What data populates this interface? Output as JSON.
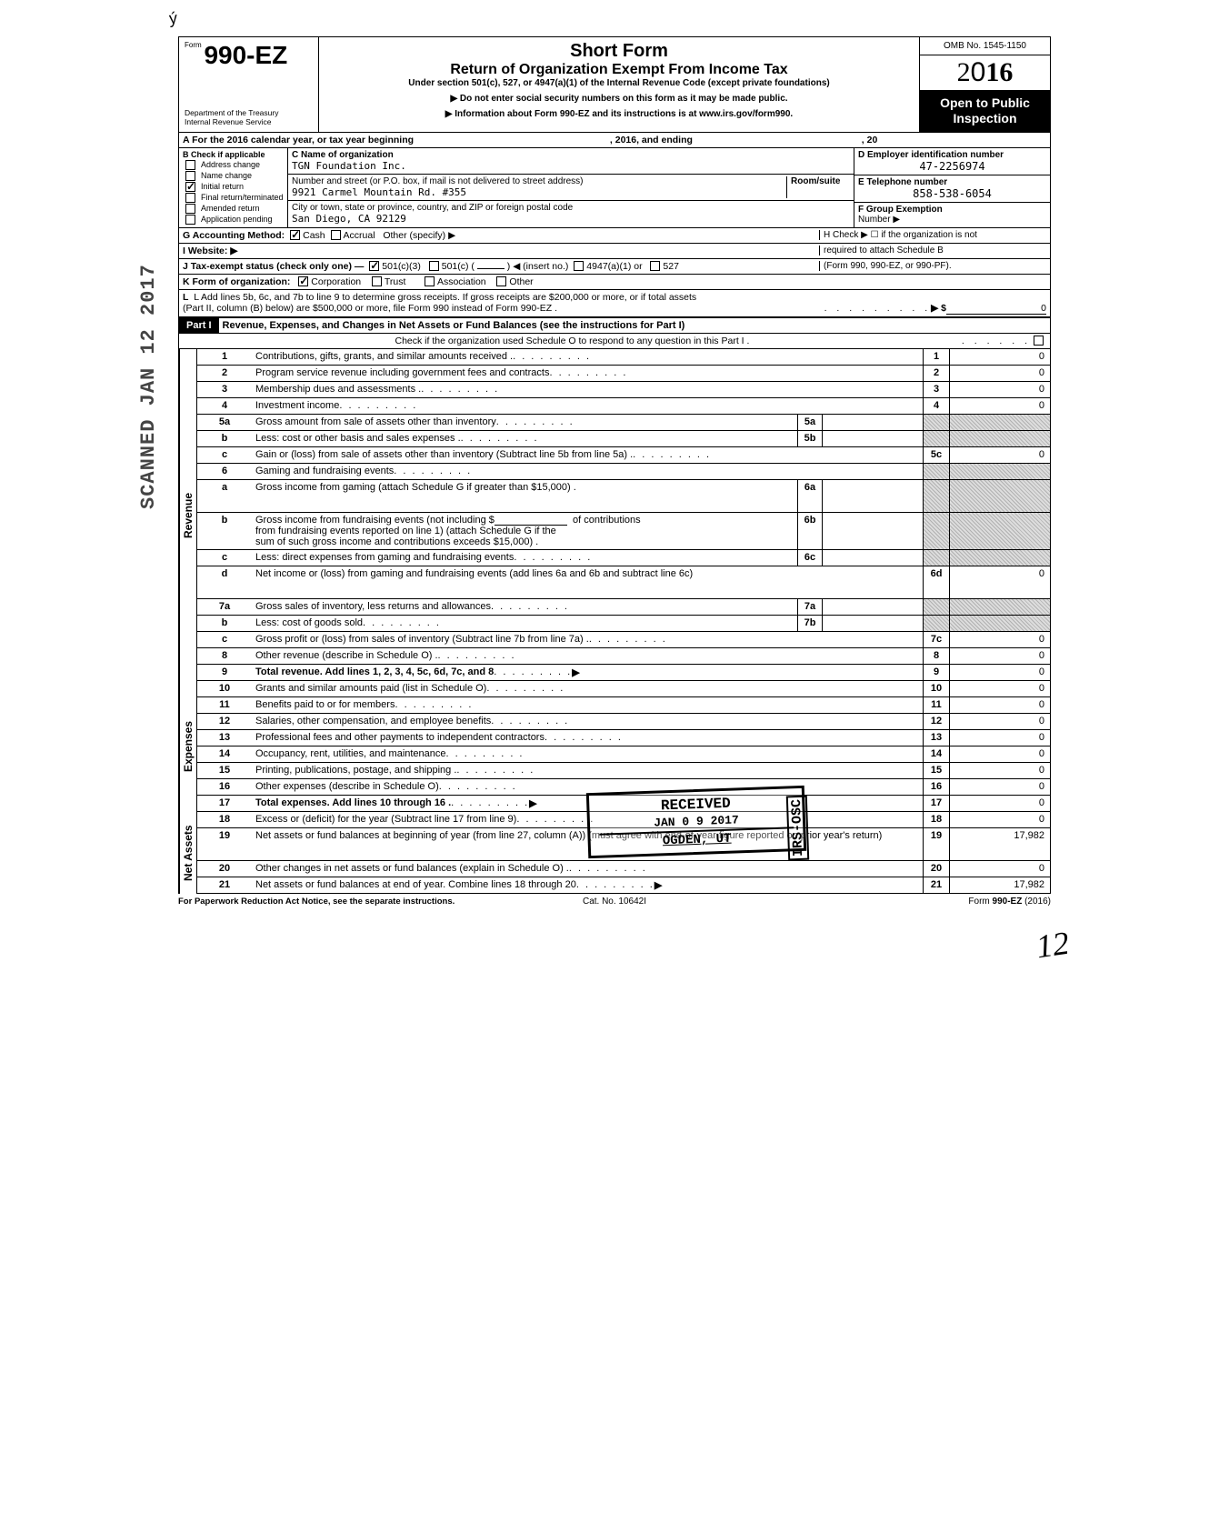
{
  "tick": "ý",
  "vert_stamp": "SCANNED JAN 12 2017",
  "header": {
    "form_word": "Form",
    "form_no": "990-EZ",
    "dept": "Department of the Treasury",
    "irs": "Internal Revenue Service",
    "title": "Short Form",
    "subtitle": "Return of Organization Exempt From Income Tax",
    "under": "Under section 501(c), 527, or 4947(a)(1) of the Internal Revenue Code (except private foundations)",
    "arrow1": "▶ Do not enter social security numbers on this form as it may be made public.",
    "arrow2": "▶ Information about Form 990-EZ and its instructions is at www.irs.gov/form990.",
    "omb": "OMB No. 1545-1150",
    "year": "2016",
    "inspect": "Open to Public Inspection"
  },
  "line_a": {
    "lead": "A  For the 2016 calendar year, or tax year beginning",
    "mid": ", 2016, and ending",
    "end": ", 20"
  },
  "b": {
    "label": "B  Check if applicable",
    "opts": [
      "Address change",
      "Name change",
      "Initial return",
      "Final return/terminated",
      "Amended return",
      "Application pending"
    ],
    "checked_idx": 2
  },
  "c": {
    "name_lbl": "C  Name of organization",
    "name_val": "TGN Foundation Inc.",
    "addr_lbl": "Number and street (or P.O. box, if mail is not delivered to street address)",
    "room_lbl": "Room/suite",
    "addr_val": "9921 Carmel Mountain Rd. #355",
    "city_lbl": "City or town, state or province, country, and ZIP or foreign postal code",
    "city_val": "San Diego, CA 92129"
  },
  "d": {
    "lbl": "D Employer identification number",
    "val": "47-2256974"
  },
  "e": {
    "lbl": "E  Telephone number",
    "val": "858-538-6054"
  },
  "f": {
    "lbl": "F  Group Exemption",
    "num": "Number  ▶"
  },
  "g": {
    "lead": "G  Accounting Method:",
    "cash": "Cash",
    "accrual": "Accrual",
    "other": "Other (specify) ▶"
  },
  "h": {
    "line1": "H  Check ▶ ☐ if the organization is not",
    "line2": "required to attach Schedule B",
    "line3": "(Form 990, 990-EZ, or 990-PF)."
  },
  "i": "I   Website: ▶",
  "j": {
    "lead": "J  Tax-exempt status (check only one) —",
    "c3": "501(c)(3)",
    "c": "501(c) (",
    "ins": ")  ◀ (insert no.)",
    "a1": "4947(a)(1) or",
    "s527": "527"
  },
  "k": {
    "lead": "K  Form of organization:",
    "corp": "Corporation",
    "trust": "Trust",
    "assoc": "Association",
    "other": "Other"
  },
  "l": {
    "line1": "L  Add lines 5b, 6c, and 7b to line 9 to determine gross receipts. If gross receipts are $200,000 or more, or if total assets",
    "line2": "(Part II, column (B) below) are $500,000 or more, file Form 990 instead of Form 990-EZ .",
    "sym": "▶   $",
    "val": "0"
  },
  "part1": {
    "tag": "Part I",
    "title": "Revenue, Expenses, and Changes in Net Assets or Fund Balances (see the instructions for Part I)",
    "note": "Check if the organization used Schedule O to respond to any question in this Part I ."
  },
  "revenue_label": "Revenue",
  "expenses_label": "Expenses",
  "net_label": "Net Assets",
  "rows": {
    "r1": {
      "n": "1",
      "t": "Contributions, gifts, grants, and similar amounts received .",
      "rn": "1",
      "rv": "0"
    },
    "r2": {
      "n": "2",
      "t": "Program service revenue including government fees and contracts",
      "rn": "2",
      "rv": "0"
    },
    "r3": {
      "n": "3",
      "t": "Membership dues and assessments .",
      "rn": "3",
      "rv": "0"
    },
    "r4": {
      "n": "4",
      "t": "Investment income",
      "rn": "4",
      "rv": "0"
    },
    "r5a": {
      "n": "5a",
      "t": "Gross amount from sale of assets other than inventory",
      "mn": "5a"
    },
    "r5b": {
      "n": "b",
      "t": "Less: cost or other basis and sales expenses .",
      "mn": "5b"
    },
    "r5c": {
      "n": "c",
      "t": "Gain or (loss) from sale of assets other than inventory (Subtract line 5b from line 5a) .",
      "rn": "5c",
      "rv": "0"
    },
    "r6": {
      "n": "6",
      "t": "Gaming and fundraising events"
    },
    "r6a": {
      "n": "a",
      "t": "Gross income from gaming (attach Schedule G if greater than $15,000) .",
      "mn": "6a"
    },
    "r6b": {
      "n": "b",
      "t1": "Gross income from fundraising events (not including  $",
      "t2": "of contributions",
      "t3": "from fundraising events reported on line 1) (attach Schedule G if the",
      "t4": "sum of such gross income and contributions exceeds $15,000) .",
      "mn": "6b"
    },
    "r6c": {
      "n": "c",
      "t": "Less: direct expenses from gaming and fundraising events",
      "mn": "6c"
    },
    "r6d": {
      "n": "d",
      "t": "Net income or (loss) from gaming and fundraising events (add lines 6a and 6b and subtract line 6c)",
      "rn": "6d",
      "rv": "0"
    },
    "r7a": {
      "n": "7a",
      "t": "Gross sales of inventory, less returns and allowances",
      "mn": "7a"
    },
    "r7b": {
      "n": "b",
      "t": "Less: cost of goods sold",
      "mn": "7b"
    },
    "r7c": {
      "n": "c",
      "t": "Gross profit or (loss) from sales of inventory (Subtract line 7b from line 7a) .",
      "rn": "7c",
      "rv": "0"
    },
    "r8": {
      "n": "8",
      "t": "Other revenue (describe in Schedule O) .",
      "rn": "8",
      "rv": "0"
    },
    "r9": {
      "n": "9",
      "t": "Total revenue. Add lines 1, 2, 3, 4, 5c, 6d, 7c, and 8",
      "rn": "9",
      "rv": "0",
      "bold": true,
      "arrow": "▶"
    },
    "r10": {
      "n": "10",
      "t": "Grants and similar amounts paid (list in Schedule O)",
      "rn": "10",
      "rv": "0"
    },
    "r11": {
      "n": "11",
      "t": "Benefits paid to or for members",
      "rn": "11",
      "rv": "0"
    },
    "r12": {
      "n": "12",
      "t": "Salaries, other compensation, and employee benefits",
      "rn": "12",
      "rv": "0"
    },
    "r13": {
      "n": "13",
      "t": "Professional fees and other payments to independent contractors",
      "rn": "13",
      "rv": "0"
    },
    "r14": {
      "n": "14",
      "t": "Occupancy, rent, utilities, and maintenance",
      "rn": "14",
      "rv": "0"
    },
    "r15": {
      "n": "15",
      "t": "Printing, publications, postage, and shipping .",
      "rn": "15",
      "rv": "0"
    },
    "r16": {
      "n": "16",
      "t": "Other expenses (describe in Schedule O)",
      "rn": "16",
      "rv": "0"
    },
    "r17": {
      "n": "17",
      "t": "Total expenses. Add lines 10 through 16 .",
      "rn": "17",
      "rv": "0",
      "bold": true,
      "arrow": "▶"
    },
    "r18": {
      "n": "18",
      "t": "Excess or (deficit) for the year (Subtract line 17 from line 9)",
      "rn": "18",
      "rv": "0"
    },
    "r19": {
      "n": "19",
      "t": "Net assets or fund balances at beginning of year (from line 27, column (A)) (must agree with end-of-year figure reported on prior year's return)",
      "rn": "19",
      "rv": "17,982"
    },
    "r20": {
      "n": "20",
      "t": "Other changes in net assets or fund balances (explain in Schedule O) .",
      "rn": "20",
      "rv": "0"
    },
    "r21": {
      "n": "21",
      "t": "Net assets or fund balances at end of year. Combine lines 18 through 20",
      "rn": "21",
      "rv": "17,982",
      "arrow": "▶"
    }
  },
  "stamp": {
    "r1": "RECEIVED",
    "r2": "JAN 0 9 2017",
    "r3": "OGDEN, UT",
    "side": "IRS-OSC"
  },
  "footer": {
    "left": "For Paperwork Reduction Act Notice, see the separate instructions.",
    "center": "Cat. No. 10642I",
    "right": "Form 990-EZ (2016)"
  },
  "handwrite": "12"
}
